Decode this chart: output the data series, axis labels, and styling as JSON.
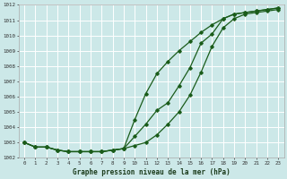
{
  "xlabel": "Graphe pression niveau de la mer (hPa)",
  "bg_color": "#cce8e8",
  "grid_color": "#ffffff",
  "line_color": "#1a5c1a",
  "xmin": 0,
  "xmax": 23,
  "ymin": 1002,
  "ymax": 1012,
  "yticks": [
    1002,
    1003,
    1004,
    1005,
    1006,
    1007,
    1008,
    1009,
    1010,
    1011,
    1012
  ],
  "xticks": [
    0,
    1,
    2,
    3,
    4,
    5,
    6,
    7,
    8,
    9,
    10,
    11,
    12,
    13,
    14,
    15,
    16,
    17,
    18,
    19,
    20,
    21,
    22,
    23
  ],
  "series1": [
    1003.0,
    1002.7,
    1002.7,
    1002.5,
    1002.4,
    1002.4,
    1002.4,
    1002.4,
    1002.5,
    1002.6,
    1004.5,
    1006.2,
    1007.5,
    1008.3,
    1009.0,
    1009.6,
    1010.2,
    1010.7,
    1011.1,
    1011.4,
    1011.5,
    1011.6,
    1011.7,
    1011.8
  ],
  "series2": [
    1003.0,
    1002.7,
    1002.7,
    1002.5,
    1002.4,
    1002.4,
    1002.4,
    1002.4,
    1002.5,
    1002.6,
    1003.4,
    1004.2,
    1005.1,
    1005.6,
    1006.7,
    1007.9,
    1009.5,
    1010.1,
    1011.1,
    1011.4,
    1011.5,
    1011.6,
    1011.7,
    1011.8
  ],
  "series3": [
    1003.0,
    1002.7,
    1002.7,
    1002.5,
    1002.4,
    1002.4,
    1002.4,
    1002.4,
    1002.5,
    1002.6,
    1002.8,
    1003.0,
    1003.5,
    1004.2,
    1005.0,
    1006.1,
    1007.6,
    1009.3,
    1010.5,
    1011.1,
    1011.4,
    1011.5,
    1011.6,
    1011.7
  ]
}
